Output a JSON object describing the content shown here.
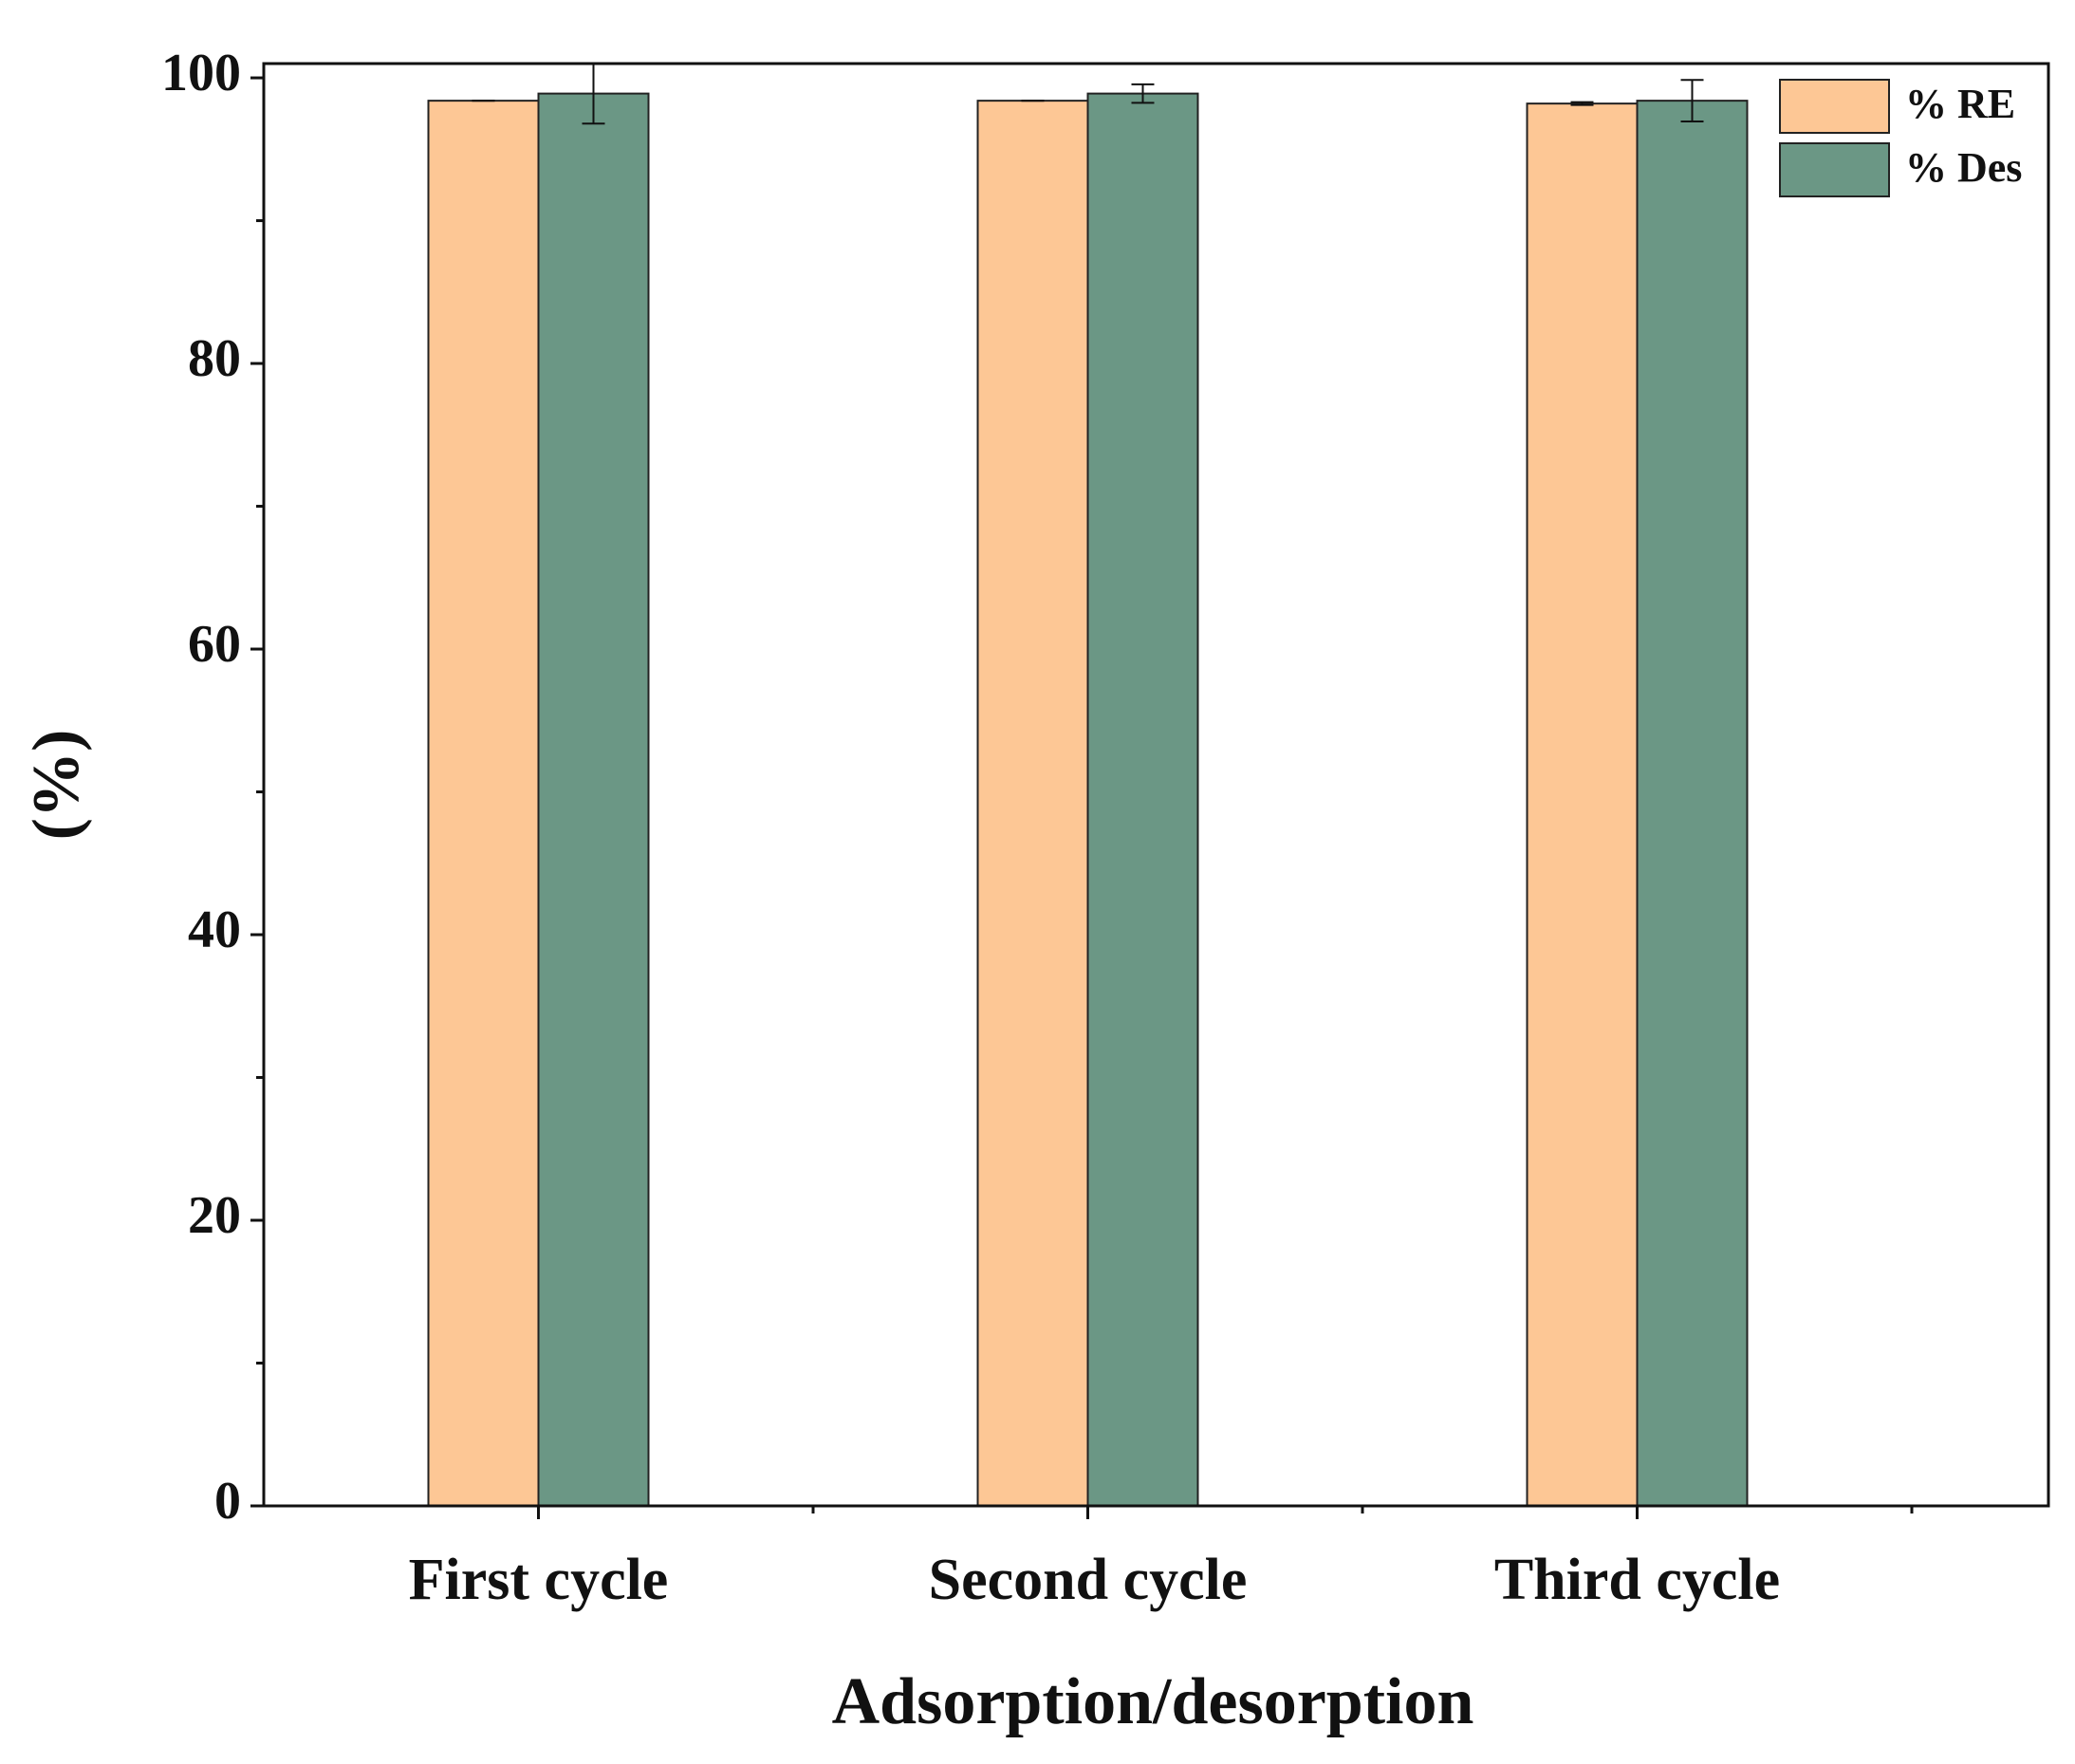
{
  "chart_data": {
    "type": "bar",
    "x_label": "Adsorption/desorption",
    "y_label": "(%)",
    "categories": [
      "First cycle",
      "Second cycle",
      "Third cycle"
    ],
    "series": [
      {
        "name": "% RE",
        "color": "#fdc795",
        "values": [
          98.4,
          98.4,
          98.2
        ],
        "errors": [
          0,
          0,
          0.1
        ]
      },
      {
        "name": "% Des",
        "color": "#6b9785",
        "values": [
          98.9,
          98.9,
          98.4
        ],
        "errors": [
          2.1,
          0.65,
          1.45
        ]
      }
    ],
    "ylim": [
      0,
      101
    ],
    "yticks": [
      0,
      20,
      40,
      60,
      80,
      100
    ],
    "legend": "upper right"
  }
}
